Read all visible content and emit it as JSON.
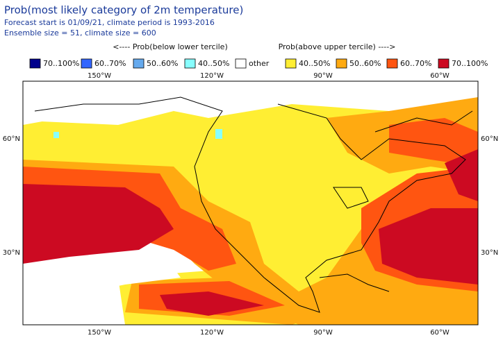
{
  "header": {
    "title": "Prob(most likely category of 2m temperature)",
    "lines": [
      "Forecast start is 01/09/21, climate period is 1993-2016",
      "Ensemble size = 51, climate size = 600"
    ]
  },
  "legend": {
    "below_heading": "<---- Prob(below lower tercile)",
    "above_heading": "Prob(above upper tercile) ---->",
    "items": [
      {
        "label": "70..100%",
        "color": "#00008b"
      },
      {
        "label": "60..70%",
        "color": "#3366ff"
      },
      {
        "label": "50..60%",
        "color": "#66aaee"
      },
      {
        "label": "40..50%",
        "color": "#88ffff"
      },
      {
        "label": "other",
        "color": "#ffffff"
      },
      {
        "label": "40..50%",
        "color": "#ffee33"
      },
      {
        "label": "50..60%",
        "color": "#ffaa11"
      },
      {
        "label": "60..70%",
        "color": "#ff5511"
      },
      {
        "label": "70..100%",
        "color": "#cc0a22"
      }
    ]
  },
  "map": {
    "lon_labels": [
      "150°W",
      "120°W",
      "90°W",
      "60°W"
    ],
    "lat_labels": [
      "60°N",
      "30°N"
    ]
  }
}
